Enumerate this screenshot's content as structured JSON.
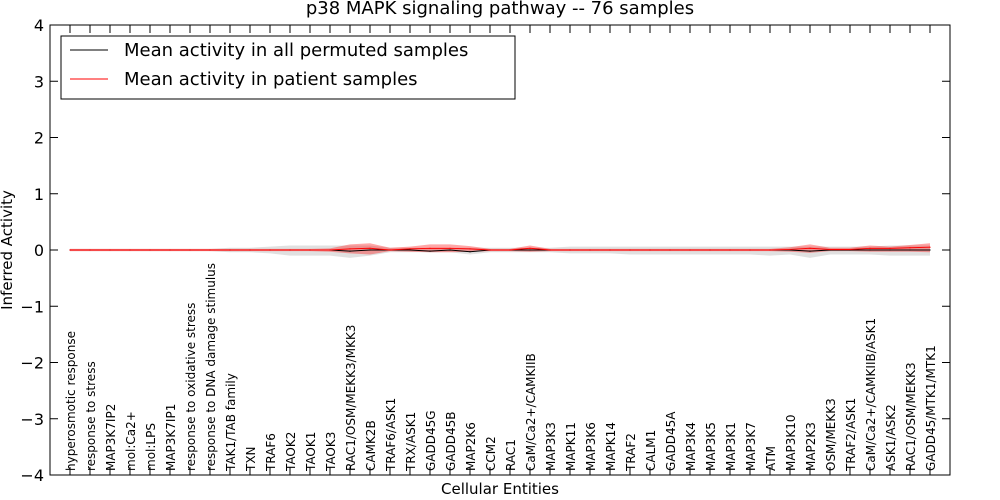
{
  "chart_data": {
    "type": "line",
    "title": "p38 MAPK signaling pathway -- 76 samples",
    "xlabel": "Cellular Entities",
    "ylabel": "Inferred Activity",
    "ylim": [
      -4,
      4
    ],
    "yticks": [
      -4,
      -3,
      -2,
      -1,
      0,
      1,
      2,
      3,
      4
    ],
    "ytick_labels": [
      "−4",
      "−3",
      "−2",
      "−1",
      "0",
      "1",
      "2",
      "3",
      "4"
    ],
    "legend_position": "top-left",
    "categories": [
      "hyperosmotic response",
      "response to stress",
      "MAP3K7IP2",
      "mol:Ca2+",
      "mol:LPS",
      "MAP3K7IP1",
      "response to oxidative stress",
      "response to DNA damage stimulus",
      "TAK1/TAB family",
      "TXN",
      "TRAF6",
      "TAOK2",
      "TAOK1",
      "TAOK3",
      "RAC1/OSM/MEKK3/MKK3",
      "CAMK2B",
      "TRAF6/ASK1",
      "TRX/ASK1",
      "GADD45G",
      "GADD45B",
      "MAP2K6",
      "CCM2",
      "RAC1",
      "CaM/Ca2+/CAMKIIB",
      "MAP3K3",
      "MAPK11",
      "MAP3K6",
      "MAPK14",
      "TRAF2",
      "CALM1",
      "GADD45A",
      "MAP3K4",
      "MAP3K5",
      "MAP3K1",
      "MAP3K7",
      "ATM",
      "MAP3K10",
      "MAP2K3",
      "OSM/MEKK3",
      "TRAF2/ASK1",
      "CaM/Ca2+/CAMKIIB/ASK1",
      "ASK1/ASK2",
      "RAC1/OSM/MEKK3",
      "GADD45/MTK1/MTK1"
    ],
    "series": [
      {
        "name": "Mean activity in all permuted samples",
        "color": "#000000",
        "values": [
          0,
          0,
          0,
          0,
          0,
          0,
          0,
          0,
          0,
          0,
          0,
          0,
          0,
          0,
          -0.02,
          0,
          0,
          0,
          -0.02,
          0,
          -0.03,
          0,
          0,
          0,
          0,
          0,
          0,
          0,
          0,
          0,
          0,
          0,
          0,
          0,
          0,
          0,
          0,
          -0.02,
          0,
          0,
          0,
          0,
          0,
          0
        ],
        "band_lower": [
          -0.02,
          -0.02,
          -0.02,
          -0.02,
          -0.02,
          -0.02,
          -0.02,
          -0.02,
          -0.04,
          -0.04,
          -0.06,
          -0.1,
          -0.1,
          -0.1,
          -0.14,
          -0.1,
          -0.04,
          -0.04,
          -0.04,
          -0.04,
          -0.08,
          -0.04,
          -0.04,
          -0.04,
          -0.04,
          -0.06,
          -0.06,
          -0.06,
          -0.08,
          -0.08,
          -0.08,
          -0.08,
          -0.08,
          -0.08,
          -0.08,
          -0.1,
          -0.08,
          -0.14,
          -0.08,
          -0.08,
          -0.08,
          -0.1,
          -0.1,
          -0.1
        ],
        "band_upper": [
          0.02,
          0.02,
          0.02,
          0.02,
          0.02,
          0.02,
          0.02,
          0.02,
          0.04,
          0.04,
          0.06,
          0.08,
          0.08,
          0.08,
          0.08,
          0.08,
          0.04,
          0.04,
          0.04,
          0.04,
          0.04,
          0.04,
          0.04,
          0.04,
          0.04,
          0.06,
          0.06,
          0.06,
          0.06,
          0.06,
          0.06,
          0.06,
          0.06,
          0.06,
          0.06,
          0.06,
          0.06,
          0.06,
          0.06,
          0.06,
          0.06,
          0.08,
          0.08,
          0.08
        ]
      },
      {
        "name": "Mean activity in patient samples",
        "color": "#ff0000",
        "values": [
          0,
          0,
          0,
          0,
          0,
          0,
          0,
          0,
          0,
          0,
          0,
          0,
          0,
          0,
          0.02,
          0.03,
          0,
          0.02,
          0.03,
          0.03,
          0.02,
          0,
          0,
          0.03,
          0,
          0,
          0,
          0,
          0,
          0,
          0,
          0,
          0,
          0,
          0,
          0,
          0.01,
          0.03,
          0.01,
          0.01,
          0.03,
          0.03,
          0.04,
          0.05
        ],
        "band_lower": [
          -0.02,
          -0.02,
          -0.02,
          -0.02,
          -0.02,
          -0.02,
          -0.02,
          -0.02,
          -0.02,
          -0.02,
          -0.02,
          -0.02,
          -0.02,
          -0.03,
          -0.06,
          -0.08,
          -0.02,
          -0.03,
          -0.04,
          -0.04,
          -0.03,
          -0.02,
          -0.02,
          -0.03,
          -0.02,
          -0.02,
          -0.02,
          -0.02,
          -0.02,
          -0.02,
          -0.02,
          -0.02,
          -0.02,
          -0.02,
          -0.02,
          -0.02,
          -0.03,
          -0.05,
          -0.02,
          -0.02,
          -0.03,
          -0.03,
          -0.03,
          -0.04
        ],
        "band_upper": [
          0.02,
          0.02,
          0.02,
          0.02,
          0.02,
          0.02,
          0.02,
          0.02,
          0.02,
          0.02,
          0.02,
          0.02,
          0.02,
          0.03,
          0.1,
          0.12,
          0.04,
          0.06,
          0.1,
          0.1,
          0.07,
          0.02,
          0.02,
          0.08,
          0.02,
          0.02,
          0.02,
          0.02,
          0.02,
          0.02,
          0.02,
          0.02,
          0.02,
          0.02,
          0.02,
          0.02,
          0.05,
          0.1,
          0.04,
          0.04,
          0.08,
          0.06,
          0.09,
          0.12
        ]
      }
    ]
  }
}
